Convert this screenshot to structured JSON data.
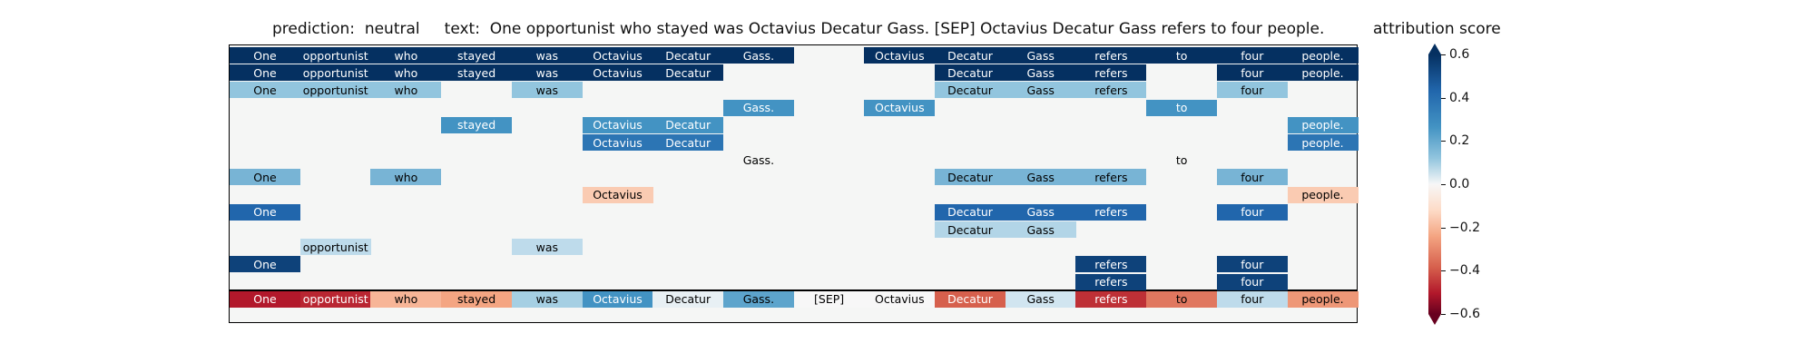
{
  "prediction_text": "prediction:  neutral     text:  One opportunist who stayed was Octavius Decatur Gass. [SEP] Octavius Decatur Gass refers to four people.",
  "colorbar_label": "attribution score",
  "chart_data": {
    "type": "heatmap",
    "tokens": [
      "One",
      "opportunist",
      "who",
      "stayed",
      "was",
      "Octavius",
      "Decatur",
      "Gass.",
      "[SEP]",
      "Octavius",
      "Decatur",
      "Gass",
      "refers",
      "to",
      "four",
      "people."
    ],
    "rows": [
      [
        0.6,
        0.6,
        0.6,
        0.6,
        0.6,
        0.6,
        0.6,
        0.6,
        null,
        0.6,
        0.6,
        0.6,
        0.6,
        0.6,
        0.6,
        0.6
      ],
      [
        0.6,
        0.6,
        0.6,
        0.6,
        0.6,
        0.6,
        0.6,
        null,
        null,
        null,
        0.6,
        0.6,
        0.6,
        null,
        0.6,
        0.6
      ],
      [
        0.15,
        0.15,
        0.15,
        null,
        0.15,
        null,
        null,
        null,
        null,
        null,
        0.15,
        0.15,
        0.15,
        null,
        0.15,
        null
      ],
      [
        null,
        null,
        null,
        null,
        null,
        null,
        null,
        0.3,
        null,
        0.3,
        null,
        null,
        null,
        0.3,
        null,
        null
      ],
      [
        null,
        null,
        null,
        0.3,
        null,
        0.3,
        0.3,
        null,
        null,
        null,
        null,
        null,
        null,
        null,
        null,
        0.3
      ],
      [
        null,
        null,
        null,
        null,
        null,
        0.4,
        0.4,
        null,
        null,
        null,
        null,
        null,
        null,
        null,
        null,
        0.4
      ],
      [
        null,
        null,
        null,
        null,
        null,
        null,
        null,
        0.01,
        null,
        null,
        null,
        null,
        null,
        0.01,
        null,
        null
      ],
      [
        0.2,
        null,
        0.2,
        null,
        null,
        null,
        null,
        null,
        null,
        null,
        0.2,
        0.2,
        0.2,
        null,
        0.2,
        null
      ],
      [
        null,
        null,
        null,
        null,
        null,
        -0.08,
        null,
        null,
        null,
        null,
        null,
        null,
        null,
        null,
        null,
        -0.08
      ],
      [
        0.45,
        null,
        null,
        null,
        null,
        null,
        null,
        null,
        null,
        null,
        0.45,
        0.45,
        0.45,
        null,
        0.45,
        null
      ],
      [
        null,
        null,
        null,
        null,
        null,
        null,
        null,
        null,
        null,
        null,
        0.1,
        0.1,
        null,
        null,
        null,
        null
      ],
      [
        null,
        0.08,
        null,
        null,
        0.08,
        null,
        null,
        null,
        null,
        null,
        null,
        null,
        null,
        null,
        null,
        null
      ],
      [
        0.55,
        null,
        null,
        null,
        null,
        null,
        null,
        null,
        null,
        null,
        null,
        null,
        0.55,
        null,
        0.55,
        null
      ],
      [
        null,
        null,
        null,
        null,
        null,
        null,
        null,
        null,
        null,
        null,
        null,
        null,
        0.55,
        null,
        0.55,
        null
      ]
    ],
    "summary_row": [
      -0.45,
      -0.42,
      -0.12,
      -0.15,
      0.12,
      0.3,
      0.02,
      0.25,
      0.0,
      0.0,
      -0.3,
      0.05,
      -0.4,
      -0.25,
      0.08,
      -0.18
    ],
    "colorbar": {
      "range": [
        -0.6,
        0.6
      ],
      "colormap": "RdBu",
      "extend": "both",
      "ticks": [
        "0.6",
        "0.4",
        "0.2",
        "0.0",
        "−0.2",
        "−0.4",
        "−0.6"
      ]
    }
  }
}
